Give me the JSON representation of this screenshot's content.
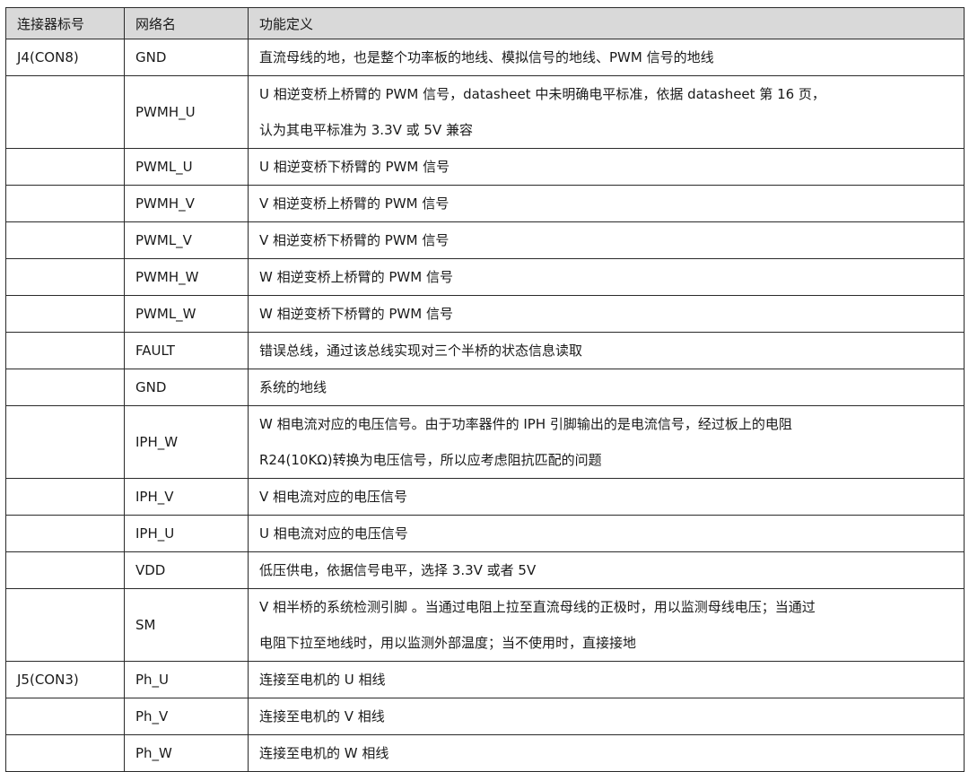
{
  "headers": [
    "连接器标号",
    "网络名",
    "功能定义"
  ],
  "rows": [
    {
      "connector": "J4(CON8)",
      "net": "GND",
      "desc": [
        "直流母线的地，也是整个功率板的地线、模拟信号的地线、PWM 信号的地线"
      ]
    },
    {
      "connector": "",
      "net": "PWMH_U",
      "desc": [
        "U 相逆变桥上桥臂的 PWM 信号，datasheet 中未明确电平标准，依据 datasheet 第 16 页，",
        "认为其电平标准为 3.3V 或 5V 兼容"
      ]
    },
    {
      "connector": "",
      "net": "PWML_U",
      "desc": [
        "U 相逆变桥下桥臂的 PWM 信号"
      ]
    },
    {
      "connector": "",
      "net": "PWMH_V",
      "desc": [
        "V 相逆变桥上桥臂的 PWM 信号"
      ]
    },
    {
      "connector": "",
      "net": "PWML_V",
      "desc": [
        "V 相逆变桥下桥臂的 PWM 信号"
      ]
    },
    {
      "connector": "",
      "net": "PWMH_W",
      "desc": [
        "W 相逆变桥上桥臂的 PWM 信号"
      ]
    },
    {
      "connector": "",
      "net": "PWML_W",
      "desc": [
        "W 相逆变桥下桥臂的 PWM 信号"
      ]
    },
    {
      "connector": "",
      "net": "FAULT",
      "desc": [
        "错误总线，通过该总线实现对三个半桥的状态信息读取"
      ]
    },
    {
      "connector": "",
      "net": "GND",
      "desc": [
        "系统的地线"
      ]
    },
    {
      "connector": "",
      "net": "IPH_W",
      "desc": [
        "W 相电流对应的电压信号。由于功率器件的 IPH 引脚输出的是电流信号，经过板上的电阻",
        "R24(10KΩ)转换为电压信号，所以应考虑阻抗匹配的问题"
      ]
    },
    {
      "connector": "",
      "net": "IPH_V",
      "desc": [
        "V 相电流对应的电压信号"
      ]
    },
    {
      "connector": "",
      "net": "IPH_U",
      "desc": [
        "U 相电流对应的电压信号"
      ]
    },
    {
      "connector": "",
      "net": "VDD",
      "desc": [
        "低压供电，依据信号电平，选择 3.3V 或者 5V"
      ]
    },
    {
      "connector": "",
      "net": "SM",
      "desc": [
        "V 相半桥的系统检测引脚 。当通过电阻上拉至直流母线的正极时，用以监测母线电压；当通过",
        "电阻下拉至地线时，用以监测外部温度；当不使用时，直接接地"
      ]
    },
    {
      "connector": "J5(CON3)",
      "net": "Ph_U",
      "desc": [
        "连接至电机的 U 相线"
      ]
    },
    {
      "connector": "",
      "net": "Ph_V",
      "desc": [
        "连接至电机的 V 相线"
      ]
    },
    {
      "connector": "",
      "net": "Ph_W",
      "desc": [
        "连接至电机的 W 相线"
      ]
    }
  ]
}
